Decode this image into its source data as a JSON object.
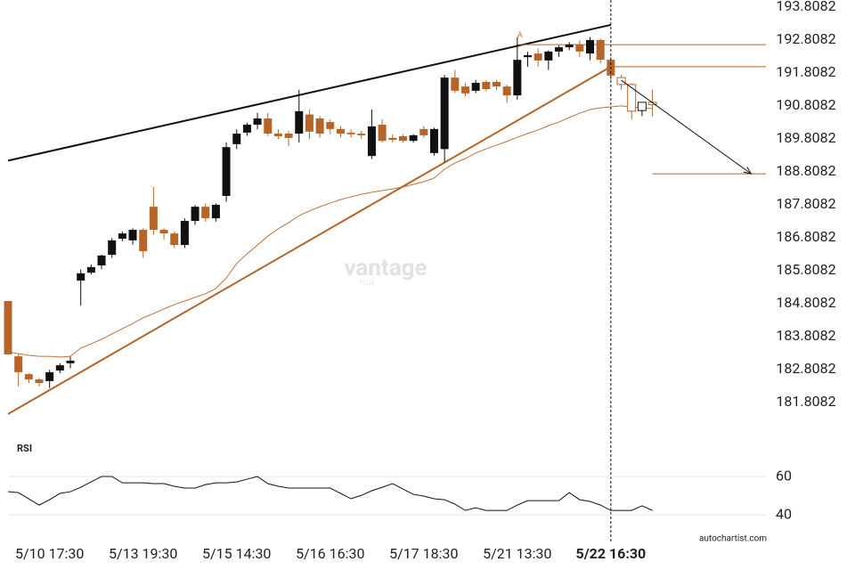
{
  "chart_data": {
    "type": "candlestick",
    "categories": [
      null,
      null,
      null,
      null,
      "5/10 17:30",
      null,
      null,
      null,
      null,
      null,
      null,
      null,
      null,
      "5/13 19:30",
      null,
      null,
      null,
      null,
      null,
      null,
      null,
      null,
      "5/15 14:30",
      null,
      null,
      null,
      null,
      null,
      null,
      null,
      null,
      "5/16 16:30",
      null,
      null,
      null,
      null,
      null,
      null,
      null,
      null,
      "5/17 18:30",
      null,
      null,
      null,
      null,
      null,
      null,
      null,
      null,
      "5/21 13:30",
      null,
      null,
      null,
      null,
      null,
      null,
      null,
      null,
      "5/22 16:30",
      null,
      null,
      null,
      null
    ],
    "open": [
      184.89,
      183.21,
      182.67,
      182.51,
      182.46,
      182.78,
      183.0,
      185.51,
      185.75,
      185.97,
      186.29,
      186.78,
      186.73,
      187.05,
      187.75,
      187.05,
      186.94,
      186.59,
      187.32,
      187.75,
      187.4,
      188.08,
      189.65,
      190.0,
      190.24,
      190.43,
      189.97,
      189.97,
      189.97,
      190.55,
      190.43,
      190.32,
      190.11,
      190.0,
      189.97,
      189.29,
      190.24,
      189.84,
      189.89,
      189.75,
      190.11,
      189.38,
      189.5,
      191.67,
      191.4,
      191.27,
      191.54,
      191.54,
      191.4,
      191.13,
      192.29,
      192.4,
      192.19,
      192.46,
      192.59,
      192.67,
      192.4,
      192.81,
      192.21,
      191.67,
      191.46,
      190.67,
      190.92
    ],
    "high": [
      184.89,
      183.27,
      182.7,
      182.55,
      182.8,
      183.0,
      183.2,
      185.85,
      186.0,
      186.3,
      186.8,
      187.0,
      187.1,
      187.1,
      188.35,
      187.1,
      187.0,
      187.4,
      187.8,
      187.85,
      187.85,
      189.7,
      190.1,
      190.3,
      190.6,
      190.6,
      190.1,
      190.05,
      191.3,
      190.7,
      190.5,
      190.4,
      190.2,
      190.1,
      190.05,
      190.7,
      190.4,
      189.95,
      189.95,
      189.95,
      190.2,
      190.15,
      191.75,
      191.9,
      191.5,
      191.6,
      191.6,
      191.6,
      191.45,
      192.9,
      192.45,
      192.55,
      192.5,
      192.65,
      192.75,
      192.8,
      192.9,
      192.85,
      192.3,
      191.75,
      191.5,
      190.9,
      191.3
    ],
    "low": [
      183.27,
      182.3,
      182.4,
      182.3,
      182.25,
      182.7,
      182.85,
      184.75,
      185.7,
      185.85,
      186.2,
      186.7,
      186.6,
      186.2,
      186.9,
      186.75,
      186.5,
      186.5,
      187.2,
      187.3,
      187.3,
      187.9,
      189.5,
      189.9,
      190.1,
      189.9,
      189.8,
      189.6,
      189.7,
      189.8,
      189.85,
      189.95,
      189.85,
      189.85,
      189.8,
      189.2,
      189.7,
      189.7,
      189.7,
      189.7,
      189.85,
      189.3,
      189.1,
      191.2,
      191.1,
      191.2,
      191.25,
      191.3,
      190.9,
      191.0,
      192.0,
      192.0,
      191.9,
      192.3,
      192.5,
      192.3,
      192.2,
      192.1,
      191.6,
      191.3,
      190.4,
      190.5,
      190.5
    ],
    "close": [
      183.27,
      182.73,
      182.51,
      182.4,
      182.73,
      182.94,
      183.08,
      185.73,
      185.92,
      186.27,
      186.73,
      186.94,
      187.05,
      186.4,
      187.05,
      186.94,
      186.59,
      187.32,
      187.75,
      187.4,
      187.81,
      189.56,
      189.97,
      190.24,
      190.43,
      189.97,
      189.89,
      189.84,
      190.65,
      190.03,
      189.97,
      190.11,
      189.97,
      189.95,
      189.92,
      190.19,
      189.75,
      189.78,
      189.75,
      189.92,
      189.92,
      190.11,
      191.67,
      191.27,
      191.19,
      191.51,
      191.32,
      191.4,
      191.13,
      192.21,
      192.35,
      192.19,
      192.46,
      192.59,
      192.67,
      192.46,
      192.81,
      192.21,
      191.73,
      191.46,
      190.65,
      190.92,
      190.85
    ],
    "up_color": "#111111",
    "down_color": "#b5652a",
    "projected_from_index": 59,
    "ylim": [
      180.8082,
      193.8082
    ],
    "yticks": [
      181.8082,
      182.8082,
      183.8082,
      184.8082,
      185.8082,
      186.8082,
      187.8082,
      188.8082,
      189.8082,
      190.8082,
      191.8082,
      192.8082,
      193.8082
    ],
    "moving_average": {
      "color": "#c0703a",
      "values": [
        183.35,
        183.29,
        183.24,
        183.21,
        183.21,
        183.19,
        183.21,
        183.46,
        183.59,
        183.73,
        183.89,
        184.05,
        184.21,
        184.38,
        184.51,
        184.65,
        184.78,
        184.89,
        185.0,
        185.11,
        185.27,
        185.59,
        186.03,
        186.32,
        186.59,
        186.86,
        187.08,
        187.27,
        187.48,
        187.62,
        187.75,
        187.86,
        187.97,
        188.05,
        188.13,
        188.19,
        188.24,
        188.29,
        188.35,
        188.43,
        188.51,
        188.62,
        188.89,
        189.08,
        189.21,
        189.38,
        189.51,
        189.62,
        189.73,
        189.86,
        189.97,
        190.08,
        190.21,
        190.32,
        190.46,
        190.59,
        190.7,
        190.75,
        190.78,
        190.81,
        190.78,
        190.75,
        190.73
      ]
    },
    "trend_lines": [
      {
        "color": "#111111",
        "start": [
          0,
          189.15
        ],
        "end": [
          58,
          193.27
        ]
      },
      {
        "color": "#b5652a",
        "start": [
          0,
          181.46
        ],
        "end": [
          58,
          192.0
        ]
      }
    ],
    "levels": [
      {
        "color": "#b5652a",
        "price": 192.67,
        "from": 49
      },
      {
        "color": "#b5652a",
        "price": 192.0,
        "from": 58
      },
      {
        "color": "#b5652a",
        "price": 188.75,
        "from": 62
      }
    ],
    "forecast_arrow": {
      "color": "#111111",
      "start": [
        59,
        191.59
      ],
      "end": [
        71.5,
        188.75
      ]
    },
    "pattern_point_label": {
      "text": "A",
      "index": 49,
      "price": 192.9
    },
    "marker_index": 58,
    "watermark": {
      "text": "vantage",
      "subtext": "PLUS"
    },
    "source": "autochartist.com",
    "rsi": {
      "label": "RSI",
      "color": "#111111",
      "ylim": [
        34,
        67
      ],
      "yticks": [
        40,
        60
      ],
      "values": [
        52.1,
        51.6,
        48.4,
        45.1,
        47.9,
        51.2,
        52.1,
        54.4,
        57.2,
        60.0,
        60.0,
        56.7,
        56.7,
        56.7,
        56.3,
        56.3,
        54.9,
        54.0,
        54.0,
        55.8,
        56.7,
        56.7,
        57.2,
        58.6,
        60.0,
        56.3,
        54.9,
        54.0,
        54.0,
        54.0,
        54.0,
        54.0,
        51.2,
        48.4,
        50.2,
        52.6,
        54.4,
        56.3,
        53.5,
        50.7,
        49.8,
        48.4,
        47.9,
        45.6,
        42.3,
        43.7,
        42.3,
        42.3,
        42.3,
        45.1,
        47.4,
        47.4,
        47.4,
        47.4,
        51.6,
        47.9,
        47.0,
        45.1,
        42.3,
        42.3,
        42.3,
        44.7,
        42.3
      ]
    }
  }
}
